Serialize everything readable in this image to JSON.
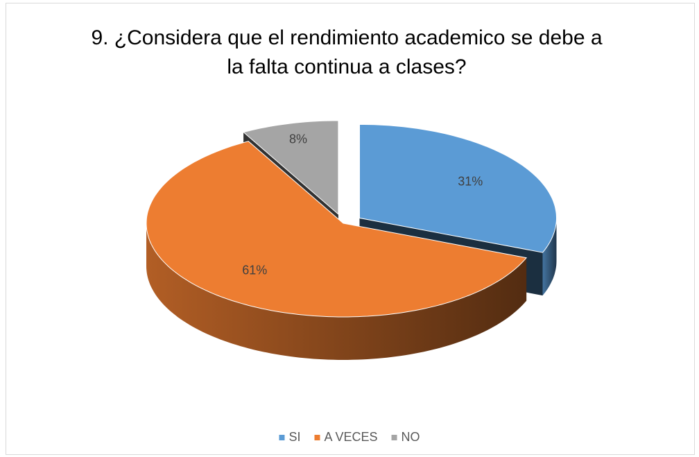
{
  "chart_data": {
    "type": "pie3d",
    "title": "9. ¿Considera que el rendimiento academico se debe a la falta continua a clases?",
    "categories": [
      "SI",
      "A VECES",
      "NO"
    ],
    "values": [
      31,
      61,
      8
    ],
    "value_labels": [
      "31%",
      "61%",
      "8%"
    ],
    "colors": [
      "#5b9bd5",
      "#ed7d31",
      "#a5a5a5"
    ],
    "exploded": [
      true,
      false,
      true
    ],
    "legend": "bottom"
  }
}
